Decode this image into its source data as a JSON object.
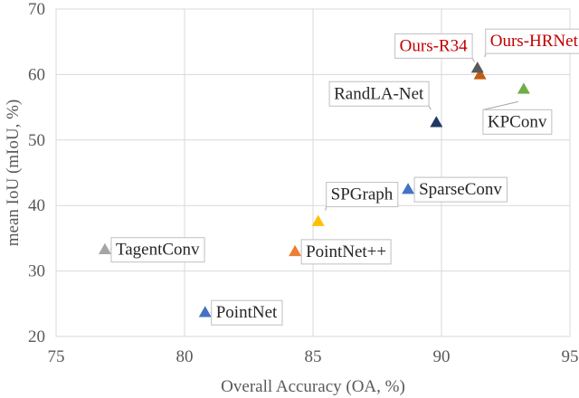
{
  "chart_data": {
    "type": "scatter",
    "title": "",
    "xlabel": "Overall Accuracy (OA, %)",
    "ylabel": "mean IoU (mIoU, %)",
    "xlim": [
      75,
      95
    ],
    "ylim": [
      20,
      70
    ],
    "xticks": [
      "75",
      "80",
      "85",
      "90",
      "95"
    ],
    "yticks": [
      "20",
      "30",
      "40",
      "50",
      "60",
      "70"
    ],
    "grid": true,
    "marker": "triangle",
    "points": [
      {
        "label": "PointNet",
        "x": 80.8,
        "y": 23.7,
        "color": "#4472c4",
        "label_pos": "right",
        "highlight": false
      },
      {
        "label": "TagentConv",
        "x": 76.9,
        "y": 33.3,
        "color": "#a5a5a5",
        "label_pos": "right",
        "highlight": false
      },
      {
        "label": "PointNet++",
        "x": 84.3,
        "y": 33.0,
        "color": "#ed7d31",
        "label_pos": "right",
        "highlight": false
      },
      {
        "label": "SPGraph",
        "x": 85.2,
        "y": 37.6,
        "color": "#ffc000",
        "label_pos": "upper-right",
        "highlight": false
      },
      {
        "label": "SparseConv",
        "x": 88.7,
        "y": 42.5,
        "color": "#4472c4",
        "label_pos": "right",
        "highlight": false
      },
      {
        "label": "RandLA-Net",
        "x": 89.8,
        "y": 52.7,
        "color": "#1f3864",
        "label_pos": "upper-left",
        "highlight": false
      },
      {
        "label": "KPConv",
        "x": 93.2,
        "y": 57.8,
        "color": "#70ad47",
        "label_pos": "lower-right",
        "highlight": false
      },
      {
        "label": "Ours-R34",
        "x": 91.5,
        "y": 60.0,
        "color": "#c55a11",
        "label_pos": "upper-left",
        "highlight": true
      },
      {
        "label": "Ours-HRNet",
        "x": 91.4,
        "y": 61.0,
        "color": "#595959",
        "label_pos": "upper-right",
        "highlight": true
      }
    ]
  }
}
